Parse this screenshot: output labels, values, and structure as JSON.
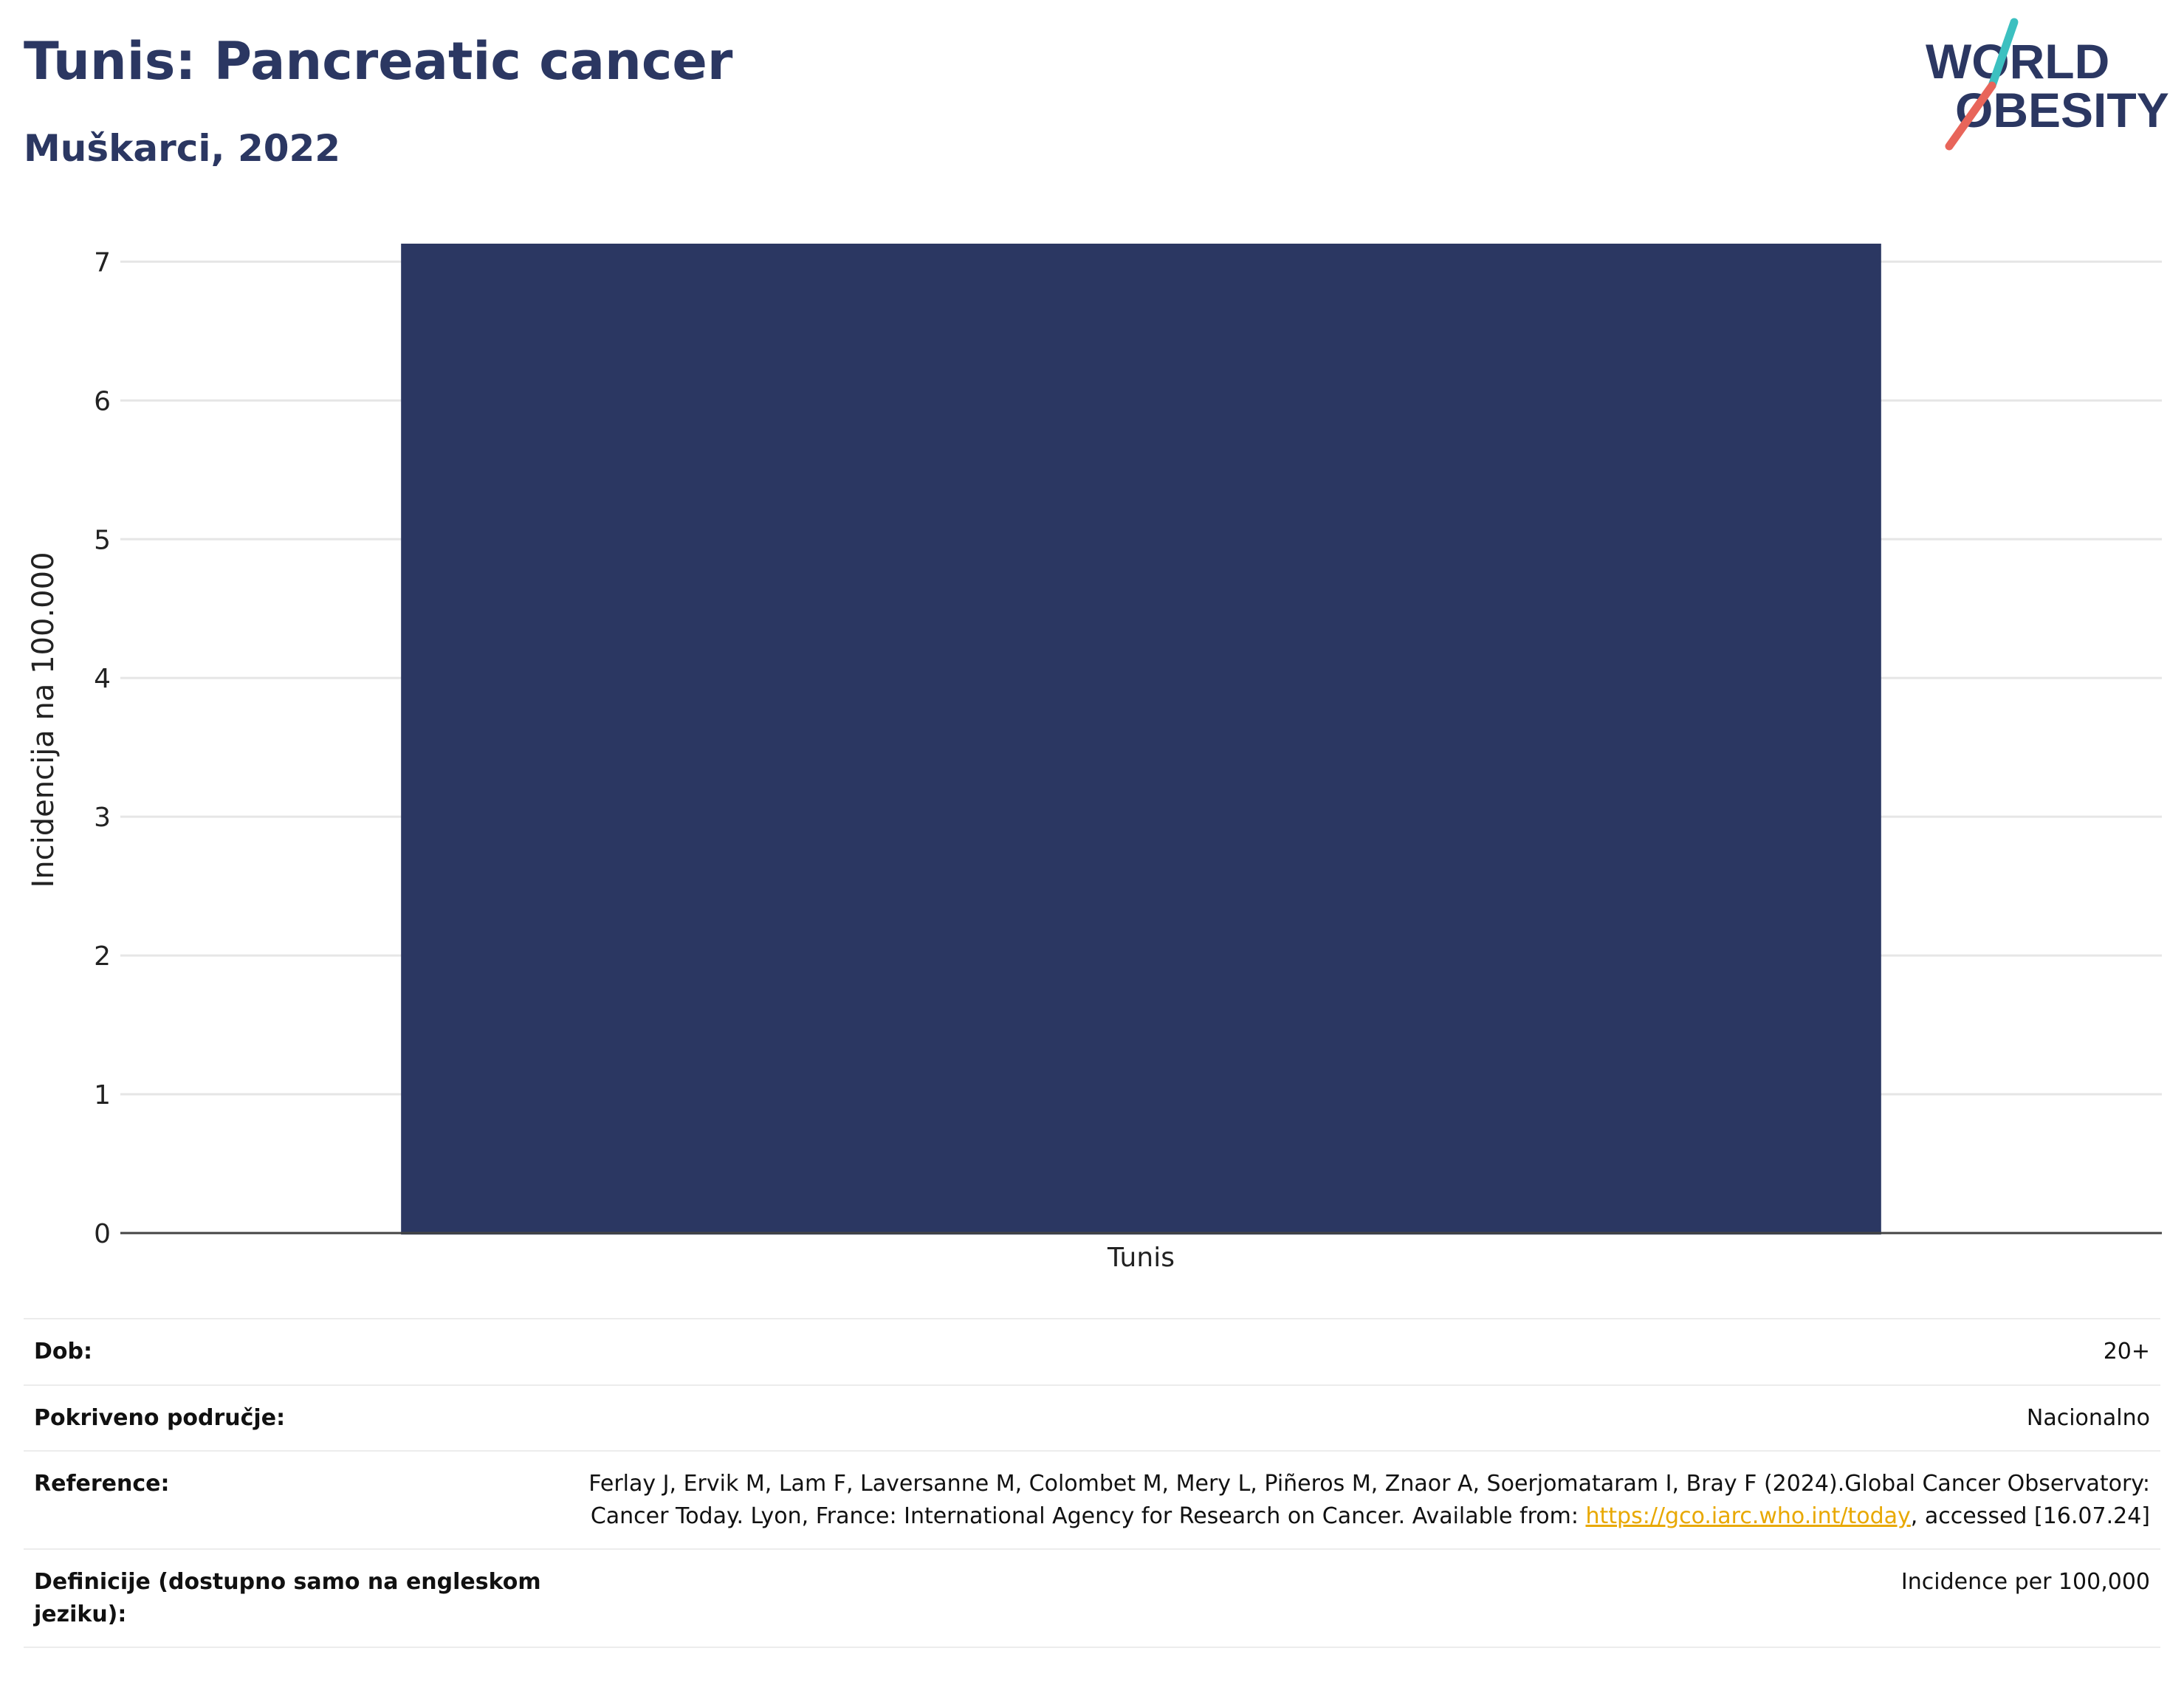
{
  "header": {
    "title": "Tunis: Pancreatic cancer",
    "subtitle": "Muškarci, 2022"
  },
  "logo": {
    "line1": "WORLD",
    "line2": "OBESITY",
    "colors": {
      "text": "#2b3762",
      "teal": "#3cc0c0",
      "coral": "#e8655a"
    }
  },
  "chart_data": {
    "type": "bar",
    "categories": [
      "Tunis"
    ],
    "values": [
      7.13
    ],
    "title": "",
    "xlabel": "",
    "ylabel": "Incidencija na 100.000",
    "ylim": [
      0,
      7.13
    ],
    "yticks": [
      0,
      1,
      2,
      3,
      4,
      5,
      6,
      7
    ],
    "grid": true,
    "bar_color": "#2b3762"
  },
  "info": {
    "age_label": "Dob:",
    "age_value": "20+",
    "coverage_label": "Pokriveno područje:",
    "coverage_value": "Nacionalno",
    "reference_label": "Reference:",
    "reference_text": "Ferlay J, Ervik M, Lam F, Laversanne M, Colombet M, Mery L, Piñeros M, Znaor A, Soerjomataram I, Bray F (2024).Global Cancer Observatory: Cancer Today. Lyon, France: International Agency for Research on Cancer. Available from:",
    "reference_link": "https://gco.iarc.who.int/today",
    "reference_suffix": ", accessed [16.07.24]",
    "definitions_label": "Definicije (dostupno samo na engleskom jeziku):",
    "definitions_value": "Incidence per 100,000"
  }
}
